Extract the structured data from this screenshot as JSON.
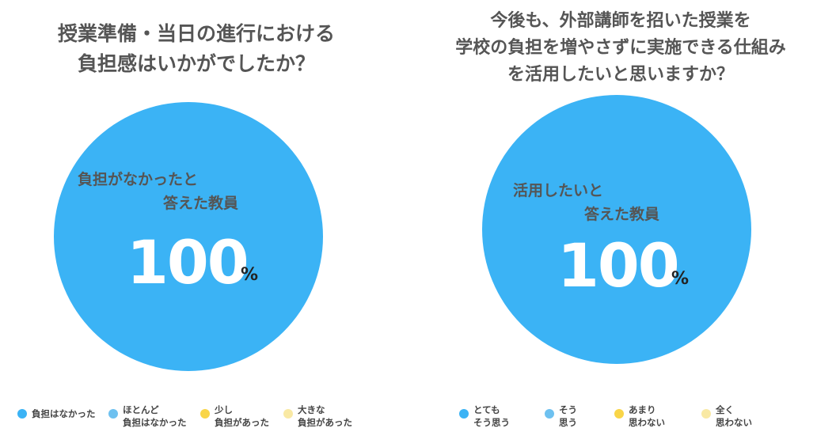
{
  "colors": {
    "primary": "#3bb3f5",
    "secondary": "#6ec1f0",
    "tertiary": "#f9d548",
    "quaternary": "#f9e9a4"
  },
  "chart_data": [
    {
      "type": "pie",
      "title_lines": [
        "授業準備・当日の進行における",
        "負担感はいかがでしたか？"
      ],
      "center_label_lines": [
        "負担がなかったと",
        "答えた教員"
      ],
      "highlight_value": "100",
      "highlight_unit": "%",
      "categories": [
        "負担はなかった",
        "ほとんど 負担はなかった",
        "少し 負担があった",
        "大きな 負担があった"
      ],
      "legend": [
        {
          "lines": [
            "負担はなかった"
          ],
          "color": "#3bb3f5"
        },
        {
          "lines": [
            "ほとんど",
            "負担はなかった"
          ],
          "color": "#6ec1f0"
        },
        {
          "lines": [
            "少し",
            "負担があった"
          ],
          "color": "#f9d548"
        },
        {
          "lines": [
            "大きな",
            "負担があった"
          ],
          "color": "#f9e9a4"
        }
      ],
      "values": [
        100,
        0,
        0,
        0
      ],
      "legend_placement": "bottom"
    },
    {
      "type": "pie",
      "title_lines": [
        "今後も、外部講師を招いた授業を",
        "学校の負担を増やさずに実施できる仕組み",
        "を活用したいと思いますか？"
      ],
      "center_label_lines": [
        "活用したいと",
        "答えた教員"
      ],
      "highlight_value": "100",
      "highlight_unit": "%",
      "categories": [
        "とても そう思う",
        "そう 思う",
        "あまり 思わない",
        "全く 思わない"
      ],
      "legend": [
        {
          "lines": [
            "とても",
            "そう思う"
          ],
          "color": "#3bb3f5"
        },
        {
          "lines": [
            "そう",
            "思う"
          ],
          "color": "#6ec1f0"
        },
        {
          "lines": [
            "あまり",
            "思わない"
          ],
          "color": "#f9d548"
        },
        {
          "lines": [
            "全く",
            "思わない"
          ],
          "color": "#f9e9a4"
        }
      ],
      "values": [
        100,
        0,
        0,
        0
      ],
      "legend_placement": "bottom"
    }
  ]
}
